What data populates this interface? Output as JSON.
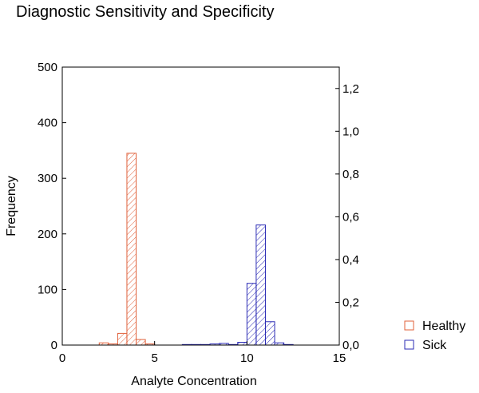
{
  "chart_data": {
    "type": "bar",
    "title": "Diagnostic Sensitivity and Specificity",
    "xlabel": "Analyte Concentration",
    "ylabel": "Frequency",
    "xlim": [
      0,
      15
    ],
    "ylim": [
      0,
      500
    ],
    "y2lim": [
      0,
      1.3
    ],
    "bin_width": 0.5,
    "x_ticks": [
      "0",
      "5",
      "10",
      "15"
    ],
    "x_tick_values": [
      0,
      5,
      10,
      15
    ],
    "y_ticks": [
      "0",
      "100",
      "200",
      "300",
      "400",
      "500"
    ],
    "y_tick_values": [
      0,
      100,
      200,
      300,
      400,
      500
    ],
    "y2_ticks": [
      "0,0",
      "0,2",
      "0,4",
      "0,6",
      "0,8",
      "1,0",
      "1,2"
    ],
    "y2_tick_values": [
      0,
      0.2,
      0.4,
      0.6,
      0.8,
      1.0,
      1.2
    ],
    "grid": false,
    "legend_position": "bottom-right",
    "series": [
      {
        "name": "Healthy",
        "color": "#e0603a",
        "hatch": "diagonal",
        "x": [
          2.0,
          2.5,
          3.0,
          3.5,
          4.0,
          4.5
        ],
        "values": [
          4,
          2,
          21,
          345,
          10,
          2
        ]
      },
      {
        "name": "Sick",
        "color": "#2b2bb5",
        "hatch": "diagonal",
        "x": [
          6.5,
          7.0,
          7.5,
          8.0,
          8.5,
          9.0,
          9.5,
          10.0,
          10.5,
          11.0,
          11.5,
          12.0
        ],
        "values": [
          1,
          1,
          1,
          2,
          3,
          1,
          5,
          111,
          216,
          42,
          4,
          1
        ]
      }
    ]
  }
}
